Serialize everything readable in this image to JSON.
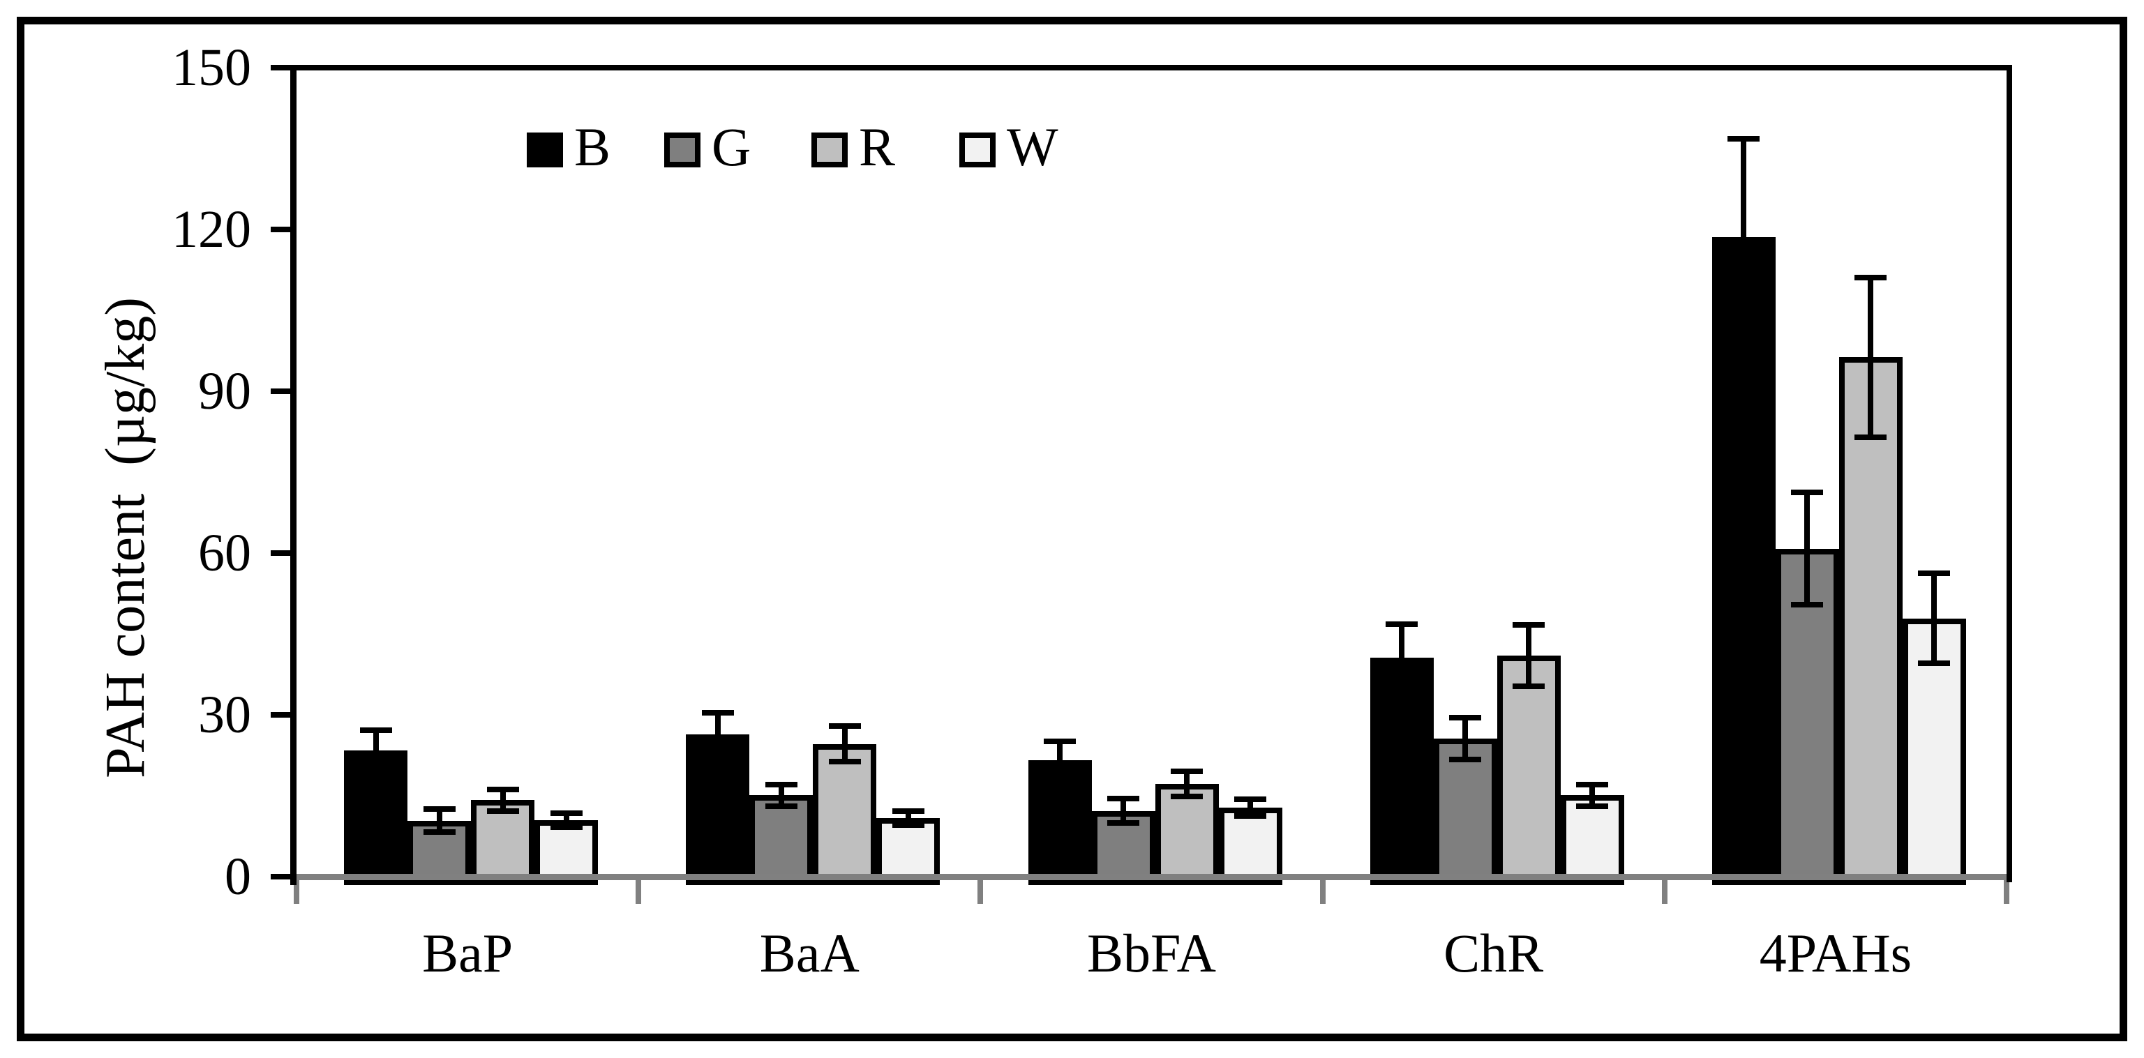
{
  "figure": {
    "background": "#ffffff",
    "border_color": "#000000"
  },
  "chart_data": {
    "type": "bar",
    "title": "",
    "xlabel": "",
    "ylabel": "PAH content  (µg/kg)",
    "ylim": [
      0,
      150
    ],
    "yticks": [
      0,
      30,
      60,
      90,
      120,
      150
    ],
    "grid": false,
    "error_bars": true,
    "legend_position": "top-inside",
    "axis_color": "#000000",
    "baseline_color": "#808080",
    "categories": [
      "BaP",
      "BaA",
      "BbFA",
      "ChR",
      "4PAHs"
    ],
    "series": [
      {
        "name": "B",
        "color": "#000000",
        "values": [
          23.4,
          26.4,
          21.6,
          40.6,
          118.6
        ],
        "errors": [
          3.8,
          4.0,
          3.5,
          6.2,
          18.2
        ]
      },
      {
        "name": "G",
        "color": "#7f7f7f",
        "values": [
          10.4,
          15.1,
          12.2,
          25.6,
          60.8
        ],
        "errors": [
          2.1,
          2.0,
          2.3,
          3.9,
          10.4
        ]
      },
      {
        "name": "R",
        "color": "#bfbfbf",
        "values": [
          14.2,
          24.6,
          17.2,
          41.0,
          96.3
        ],
        "errors": [
          2.0,
          3.3,
          2.3,
          5.7,
          14.8
        ]
      },
      {
        "name": "W",
        "color": "#f2f2f2",
        "values": [
          10.5,
          10.9,
          12.8,
          15.1,
          47.9
        ],
        "errors": [
          1.3,
          1.3,
          1.6,
          2.0,
          8.3
        ]
      }
    ]
  }
}
